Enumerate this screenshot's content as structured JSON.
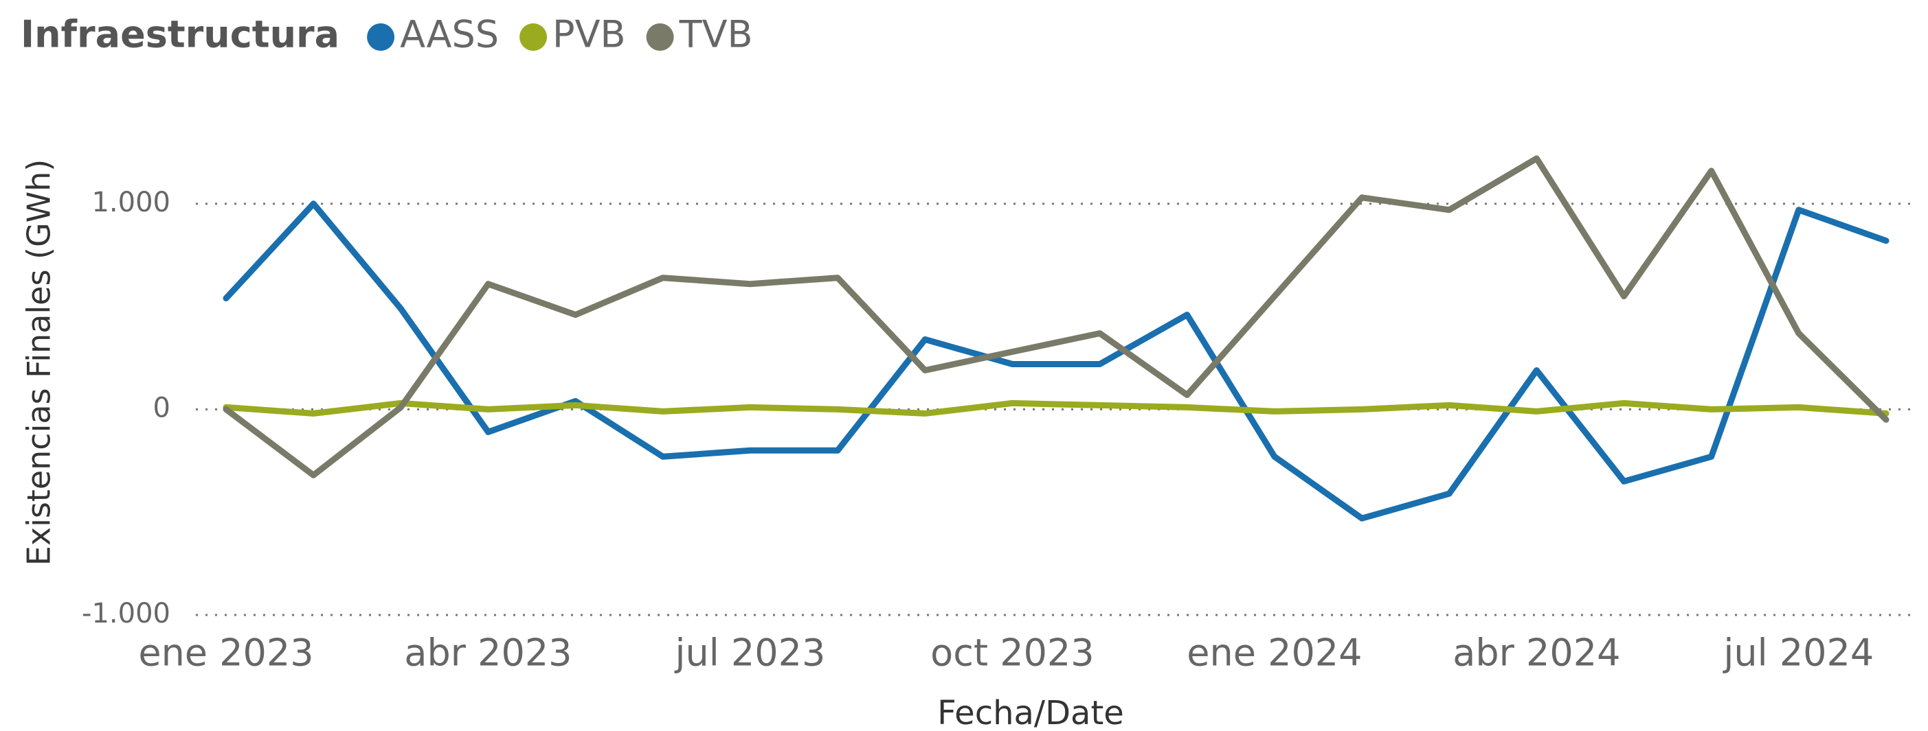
{
  "chart_data": {
    "type": "line",
    "legend_title": "Infraestructura",
    "x_label": "Fecha/Date",
    "y_label": "Existencias Finales (GWh)",
    "x": [
      "2023-01",
      "2023-02",
      "2023-03",
      "2023-04",
      "2023-05",
      "2023-06",
      "2023-07",
      "2023-08",
      "2023-09",
      "2023-10",
      "2023-11",
      "2023-12",
      "2024-01",
      "2024-02",
      "2024-03",
      "2024-04",
      "2024-05",
      "2024-06",
      "2024-07",
      "2024-08"
    ],
    "xlim": [
      "2023-01",
      "2024-08"
    ],
    "xticks": [
      {
        "value": "2023-01",
        "label": "ene 2023"
      },
      {
        "value": "2023-04",
        "label": "abr 2023"
      },
      {
        "value": "2023-07",
        "label": "jul 2023"
      },
      {
        "value": "2023-10",
        "label": "oct 2023"
      },
      {
        "value": "2024-01",
        "label": "ene 2024"
      },
      {
        "value": "2024-04",
        "label": "abr 2024"
      },
      {
        "value": "2024-07",
        "label": "jul 2024"
      }
    ],
    "ylim": [
      -1000,
      1450
    ],
    "yticks": [
      {
        "value": -1000,
        "label": "-1.000"
      },
      0,
      {
        "value": 1000,
        "label": "1.000"
      }
    ],
    "grid": true,
    "legend": "top-left",
    "series": [
      {
        "name": "AASS",
        "color": "#1a6fae",
        "values": [
          540,
          1000,
          490,
          -110,
          40,
          -230,
          -200,
          -200,
          340,
          220,
          220,
          460,
          -230,
          -530,
          -410,
          190,
          -350,
          -230,
          970,
          820
        ]
      },
      {
        "name": "PVB",
        "color": "#9aab1f",
        "values": [
          10,
          -20,
          30,
          0,
          20,
          -10,
          10,
          0,
          -20,
          30,
          20,
          10,
          -10,
          0,
          20,
          -10,
          30,
          0,
          10,
          -20
        ]
      },
      {
        "name": "TVB",
        "color": "#7a7a68",
        "values": [
          0,
          -320,
          10,
          610,
          460,
          640,
          610,
          640,
          190,
          280,
          370,
          70,
          550,
          1030,
          970,
          1220,
          550,
          1160,
          370,
          -50
        ]
      }
    ]
  }
}
